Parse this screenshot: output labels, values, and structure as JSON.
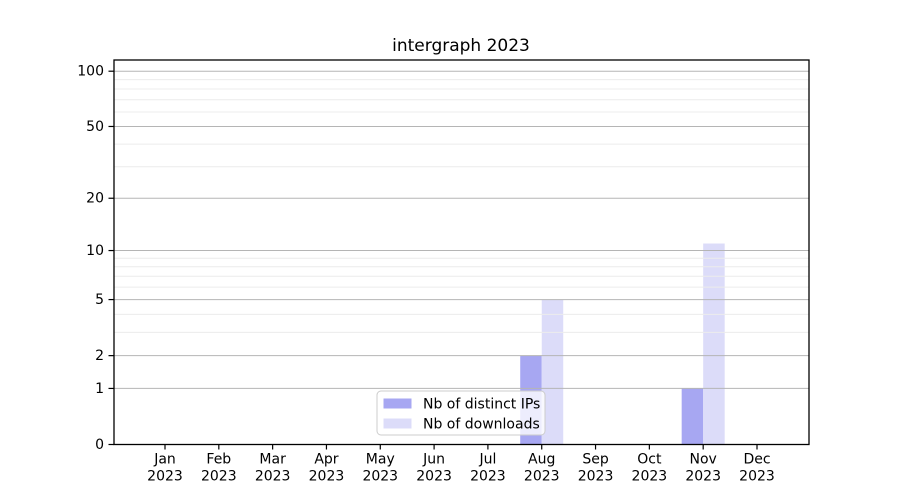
{
  "title": "intergraph 2023",
  "chart_data": {
    "type": "bar",
    "title": "intergraph 2023",
    "months": [
      "Jan",
      "Feb",
      "Mar",
      "Apr",
      "May",
      "Jun",
      "Jul",
      "Aug",
      "Sep",
      "Oct",
      "Nov",
      "Dec"
    ],
    "years": [
      "2023",
      "2023",
      "2023",
      "2023",
      "2023",
      "2023",
      "2023",
      "2023",
      "2023",
      "2023",
      "2023",
      "2023"
    ],
    "series": [
      {
        "name": "Nb of distinct IPs",
        "color": "#a7a7f2",
        "values": [
          0,
          0,
          0,
          0,
          0,
          0,
          0,
          2,
          0,
          0,
          1,
          0
        ]
      },
      {
        "name": "Nb of downloads",
        "color": "#dcdcf9",
        "values": [
          0,
          0,
          0,
          0,
          0,
          0,
          0,
          5,
          0,
          0,
          11,
          0
        ]
      }
    ],
    "yscale": "log1p",
    "ylim": [
      0,
      115
    ],
    "y_major_ticks": [
      0,
      1,
      2,
      5,
      10,
      20,
      50,
      100
    ],
    "y_minor_ticks": [
      3,
      4,
      6,
      7,
      8,
      9,
      30,
      40,
      60,
      70,
      80,
      90
    ],
    "xlabel": "",
    "ylabel": "",
    "grid": {
      "axis": "y",
      "major_color": "#b5b5b5",
      "minor_color": "#ececec"
    },
    "legend": {
      "position": "lower center",
      "labels": [
        "Nb of distinct IPs",
        "Nb of downloads"
      ]
    },
    "spine_color": "#000000",
    "background": "#ffffff"
  }
}
